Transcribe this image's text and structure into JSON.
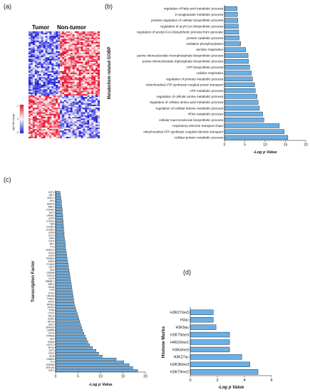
{
  "panels": {
    "a": "(a)",
    "b": "(b)",
    "c": "(c)",
    "d": "(d)"
  },
  "heatmap": {
    "col_left": "Tumor",
    "col_right": "Non-tumor",
    "legend_label": "log2 fold change",
    "legend_ticks": [
      "2",
      "0",
      "-2"
    ],
    "colors": {
      "high": "#e8112d",
      "mid": "#ffffff",
      "low": "#1f1fd8"
    }
  },
  "chart_data": [
    {
      "id": "b",
      "type": "bar",
      "orientation": "horizontal",
      "ylabel": "Metabolism related GOBP",
      "xlabel": "-Log p Value",
      "xlim": [
        0,
        20
      ],
      "xticks": [
        "0",
        "5",
        "10",
        "15",
        "20"
      ],
      "color": "#6ab0e6",
      "categories": [
        "regulation of fatty acid metabolic process",
        "2-oxoglutarate metabolic process",
        "positive regulation of cellular biosynthetic process",
        "regulation of acyl-CoA biosynthetic process",
        "regulation of acetyl-CoA biosynthetic process from pyruvate",
        "protein catabolic process",
        "oxidative phosphorylation",
        "aerobic respiration",
        "purine ribonucleoside monophosphate biosynthetic process",
        "purine ribonucleoside triphosphate biosynthetic process",
        "ATP biosynthetic process",
        "cellular respiration",
        "regulation of primary metabolic process",
        "mitochondrial ATP synthesis coupled proton transport",
        "ATP metabolic process",
        "regulation of cellular amine metabolic process",
        "regulation of cellular amino acid metabolic process",
        "regulation of cellular ketone metabolic process",
        "rRNA metabolic process",
        "cellular macromolecule biosynthetic process",
        "respiratory electron transport chain",
        "mitochondrial ATP synthesis coupled electron transport",
        "cellular protein metabolic process"
      ],
      "values": [
        3.1,
        3.2,
        3.3,
        3.4,
        3.5,
        3.6,
        4.0,
        5.2,
        5.8,
        5.9,
        6.2,
        6.6,
        6.9,
        7.4,
        7.6,
        8.0,
        8.3,
        8.6,
        9.4,
        9.7,
        13.5,
        14.7,
        15.6
      ]
    },
    {
      "id": "c",
      "type": "bar",
      "orientation": "horizontal",
      "ylabel": "Transcription Factor",
      "xlabel": "-Log p Value",
      "xlim": [
        0,
        20
      ],
      "xticks": [
        "0",
        "5",
        "10",
        "15",
        "20"
      ],
      "color": "#6ab0e6",
      "categories": [
        "E2F1",
        "TAF7",
        "ZNF17",
        "SP1",
        "NR2F2",
        "NRF1",
        "FOXM1",
        "MYC",
        "CREB1",
        "E2F4",
        "FOXA1",
        "TBP",
        "FOXM1",
        "CCND1",
        "E2F6",
        "ELK1",
        "MAX",
        "TCF4",
        "NFY",
        "YY1",
        "NFE2L2",
        "ELK4",
        "E2F3",
        "PPARG",
        "ESR1",
        "FOXA2",
        "ATF2",
        "SP3",
        "CEBPB",
        "GATA1",
        "KLF4",
        "SREBF1",
        "NRF1",
        "JUND",
        "FOS",
        "ETS1",
        "HNF4A",
        "TFDP1",
        "SOX2",
        "NFKB1",
        "STAT3",
        "TP53",
        "CTCF",
        "RELA",
        "EGR1",
        "HIF1A",
        "USF1",
        "ZNF263",
        "CEBPA",
        "KLF5",
        "PPARA",
        "SP2",
        "RXRA",
        "HCFC1",
        "NFYA",
        "ATF1",
        "E2F2",
        "MYB",
        "GABPA",
        "YY1",
        "ESRRA",
        "ZNF143",
        "E2F1"
      ],
      "values": [
        1.0,
        1.1,
        1.2,
        1.3,
        1.3,
        1.4,
        1.5,
        1.5,
        1.6,
        1.6,
        1.7,
        1.7,
        1.8,
        1.8,
        1.9,
        1.9,
        2.0,
        2.1,
        2.2,
        2.2,
        2.3,
        2.4,
        2.5,
        2.6,
        2.7,
        2.8,
        2.9,
        3.0,
        3.1,
        3.2,
        3.3,
        3.4,
        3.5,
        3.6,
        3.7,
        3.8,
        3.9,
        4.0,
        4.1,
        4.2,
        4.4,
        4.6,
        4.8,
        5.0,
        5.2,
        5.4,
        5.6,
        5.8,
        6.0,
        6.3,
        6.6,
        6.9,
        7.2,
        7.6,
        8.2,
        9.0,
        9.6,
        10.4,
        13.5,
        15.2,
        16.4,
        17.2,
        18.3
      ]
    },
    {
      "id": "d",
      "type": "bar",
      "orientation": "horizontal",
      "ylabel": "Histone Marks",
      "xlabel": "-Log p Value",
      "xlim": [
        0,
        6
      ],
      "xticks": [
        "0",
        "2",
        "4",
        "6"
      ],
      "color": "#6ab0e6",
      "categories": [
        "H3K27me3",
        "H3ac",
        "H3K9ac",
        "H3K79me3",
        "H4K20me1",
        "H3K4me3",
        "H3K27ac",
        "H3K36me3",
        "H3K79me2"
      ],
      "values": [
        1.7,
        1.7,
        1.9,
        2.9,
        2.9,
        2.9,
        3.8,
        4.4,
        5.0
      ]
    }
  ]
}
